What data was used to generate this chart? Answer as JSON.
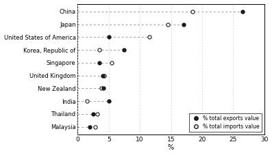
{
  "countries": [
    "China",
    "Japan",
    "United States of America",
    "Korea, Republic of",
    "Singapore",
    "United Kingdom",
    "New Zealand",
    "India",
    "Thailand",
    "Malaysia"
  ],
  "exports": [
    26.5,
    17.0,
    5.0,
    7.5,
    3.5,
    4.0,
    4.2,
    5.0,
    2.5,
    2.0
  ],
  "imports": [
    18.5,
    14.5,
    11.5,
    3.5,
    5.5,
    4.3,
    3.8,
    1.5,
    3.2,
    2.8
  ],
  "xlim": [
    0,
    30
  ],
  "xticks": [
    0,
    5,
    10,
    15,
    20,
    25,
    30
  ],
  "xlabel": "%",
  "legend_exports": "% total exports value",
  "legend_imports": "% total imports value",
  "dot_color_exports": "#1a1a1a",
  "dot_color_imports": "#ffffff",
  "dot_edgecolor": "#1a1a1a",
  "row_line_color": "#999999",
  "row_line_style": "--",
  "dot_size": 14,
  "dot_linewidth": 0.8,
  "background_color": "#ffffff",
  "label_fontsize": 6.0,
  "tick_fontsize": 6.5,
  "xlabel_fontsize": 7.0,
  "legend_fontsize": 5.5
}
